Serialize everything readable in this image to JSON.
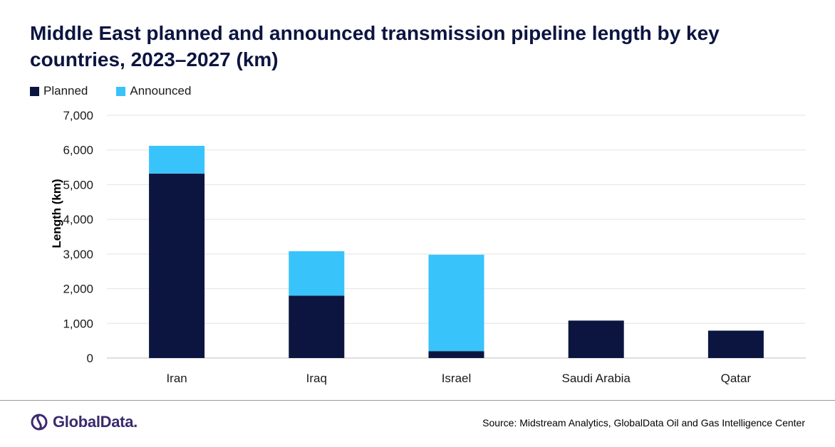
{
  "title": "Middle East planned and announced transmission pipeline length by key countries, 2023–2027 (km)",
  "legend": [
    {
      "name": "Planned",
      "color": "#0c153f"
    },
    {
      "name": "Announced",
      "color": "#38c3fb"
    }
  ],
  "footer": {
    "brand": "GlobalData.",
    "source": "Source:  Midstream Analytics, GlobalData Oil and Gas Intelligence Center"
  },
  "chart_data": {
    "type": "bar",
    "stacked": true,
    "categories": [
      "Iran",
      "Iraq",
      "Israel",
      "Saudi Arabia",
      "Qatar"
    ],
    "series": [
      {
        "name": "Planned",
        "color": "#0c153f",
        "values": [
          5320,
          1800,
          200,
          1080,
          790
        ]
      },
      {
        "name": "Announced",
        "color": "#38c3fb",
        "values": [
          800,
          1280,
          2780,
          0,
          0
        ]
      }
    ],
    "ylabel": "Length (km)",
    "xlabel": "",
    "ylim": [
      0,
      7000
    ],
    "yticks": [
      "0",
      "1,000",
      "2,000",
      "3,000",
      "4,000",
      "5,000",
      "6,000",
      "7,000"
    ],
    "grid": true,
    "legend_position": "top-left"
  }
}
